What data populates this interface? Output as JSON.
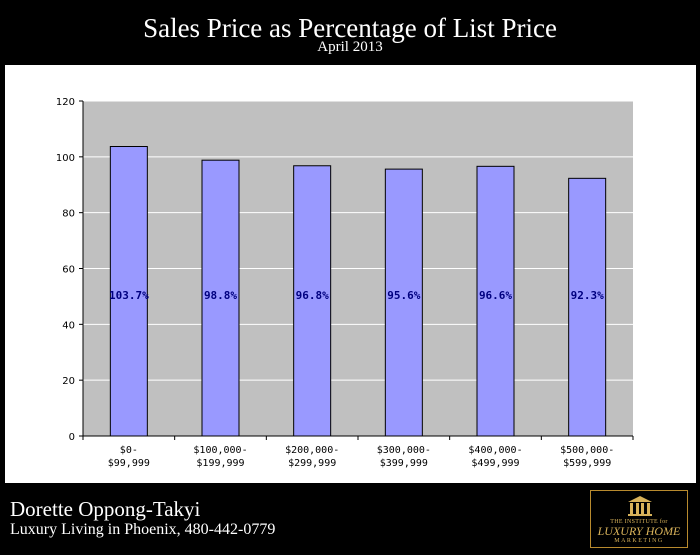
{
  "title": "Sales Price as Percentage of List Price",
  "subtitle": "April 2013",
  "footer": {
    "name": "Dorette Oppong-Takyi",
    "tagline": "Luxury Living in Phoenix, 480-442-0779"
  },
  "logo": {
    "line1": "THE INSTITUTE for",
    "line2": "LUXURY HOME",
    "line3": "MARKETING"
  },
  "colors": {
    "bar": "#9999ff",
    "plot_bg": "#c0c0c0",
    "label": "#000080"
  },
  "chart_data": {
    "type": "bar",
    "categories": [
      [
        "$0-",
        "$99,999"
      ],
      [
        "$100,000-",
        "$199,999"
      ],
      [
        "$200,000-",
        "$299,999"
      ],
      [
        "$300,000-",
        "$399,999"
      ],
      [
        "$400,000-",
        "$499,999"
      ],
      [
        "$500,000-",
        "$599,999"
      ]
    ],
    "values": [
      103.7,
      98.8,
      96.8,
      95.6,
      96.6,
      92.3
    ],
    "data_labels": [
      "103.7%",
      "98.8%",
      "96.8%",
      "95.6%",
      "96.6%",
      "92.3%"
    ],
    "yticks": [
      0,
      20,
      40,
      60,
      80,
      100,
      120
    ],
    "ylim": [
      0,
      120
    ],
    "grid": true,
    "legend": "none"
  }
}
